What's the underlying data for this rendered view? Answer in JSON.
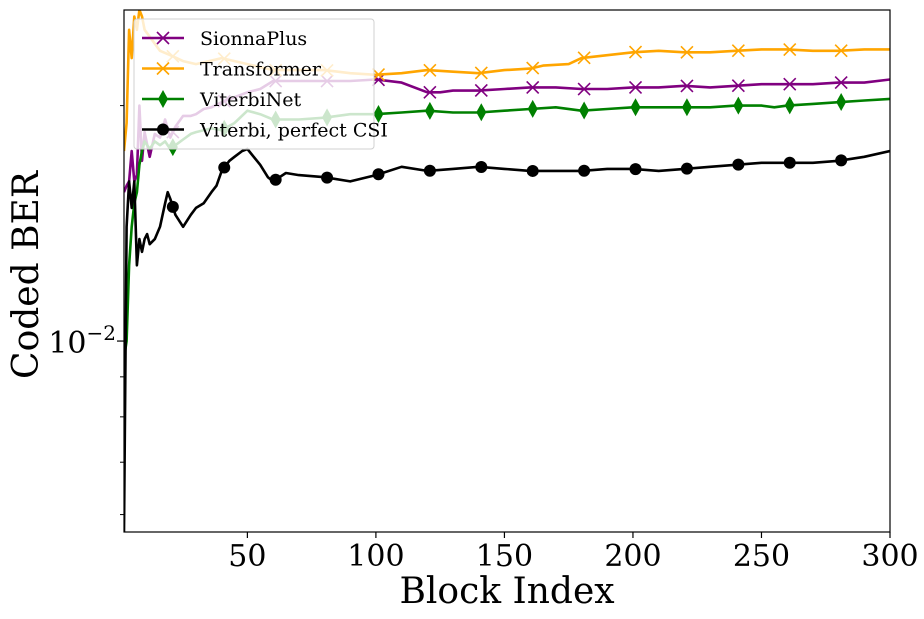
{
  "chart_data": {
    "type": "line",
    "xlabel": "Block Index",
    "ylabel": "Coded BER",
    "xlim": [
      2,
      300
    ],
    "ylim": [
      0.0057,
      0.0265
    ],
    "yscale": "log",
    "xticks": [
      50,
      100,
      150,
      200,
      250,
      300
    ],
    "yticks_major": [
      {
        "value": 0.01,
        "label": "10",
        "exp": "−2"
      }
    ],
    "yticks_minor": [
      0.006,
      0.007,
      0.008,
      0.009,
      0.02
    ],
    "grid": false,
    "legend_position": "top-left",
    "series": [
      {
        "name": "SionnaPlus",
        "color": "#800080",
        "marker": "x",
        "x": [
          2,
          3,
          4,
          5,
          6,
          7,
          8,
          9,
          10,
          12,
          14,
          16,
          18,
          20,
          22,
          25,
          28,
          30,
          33,
          36,
          40,
          45,
          50,
          55,
          60,
          70,
          80,
          90,
          100,
          110,
          120,
          125,
          130,
          140,
          150,
          160,
          170,
          180,
          190,
          200,
          210,
          220,
          230,
          240,
          250,
          260,
          270,
          280,
          290,
          300
        ],
        "y": [
          0.0155,
          0.0158,
          0.016,
          0.0175,
          0.016,
          0.0163,
          0.02,
          0.017,
          0.0185,
          0.0172,
          0.0184,
          0.0182,
          0.0192,
          0.0182,
          0.0188,
          0.0194,
          0.0194,
          0.0195,
          0.0198,
          0.0199,
          0.0202,
          0.0205,
          0.0208,
          0.021,
          0.0215,
          0.0215,
          0.0215,
          0.0215,
          0.0216,
          0.0214,
          0.0208,
          0.0208,
          0.0209,
          0.0209,
          0.021,
          0.0211,
          0.0211,
          0.021,
          0.021,
          0.0211,
          0.0211,
          0.0212,
          0.0211,
          0.0212,
          0.0213,
          0.0213,
          0.0213,
          0.0214,
          0.0214,
          0.0216
        ],
        "marker_x": [
          21,
          41,
          61,
          81,
          101,
          121,
          141,
          161,
          181,
          201,
          221,
          241,
          261,
          281
        ]
      },
      {
        "name": "Transformer",
        "color": "#FFA500",
        "marker": "x",
        "x": [
          2,
          3,
          4,
          5,
          6,
          7,
          8,
          9,
          10,
          12,
          14,
          16,
          20,
          25,
          30,
          40,
          50,
          60,
          70,
          80,
          90,
          100,
          110,
          120,
          130,
          140,
          150,
          160,
          165,
          175,
          180,
          190,
          200,
          210,
          220,
          230,
          240,
          250,
          260,
          270,
          280,
          290,
          300
        ],
        "y": [
          0.0175,
          0.019,
          0.025,
          0.023,
          0.026,
          0.025,
          0.0265,
          0.026,
          0.025,
          0.0245,
          0.024,
          0.0235,
          0.0232,
          0.0228,
          0.0226,
          0.023,
          0.0226,
          0.0222,
          0.0222,
          0.0222,
          0.022,
          0.0219,
          0.022,
          0.0222,
          0.0221,
          0.022,
          0.0222,
          0.0223,
          0.0225,
          0.0226,
          0.023,
          0.0232,
          0.0234,
          0.0235,
          0.0234,
          0.0234,
          0.0235,
          0.0236,
          0.0236,
          0.0235,
          0.0235,
          0.0236,
          0.0236
        ],
        "marker_x": [
          21,
          41,
          61,
          81,
          101,
          121,
          141,
          161,
          181,
          201,
          221,
          241,
          261,
          281
        ]
      },
      {
        "name": "ViterbiNet",
        "color": "#008000",
        "marker": "diamond",
        "x": [
          2,
          3,
          4,
          5,
          6,
          7,
          8,
          9,
          10,
          12,
          14,
          16,
          18,
          20,
          22,
          25,
          28,
          30,
          33,
          36,
          40,
          45,
          50,
          55,
          60,
          70,
          80,
          90,
          100,
          110,
          120,
          130,
          140,
          150,
          160,
          170,
          180,
          190,
          200,
          210,
          220,
          230,
          240,
          250,
          255,
          260,
          270,
          280,
          290,
          300
        ],
        "y": [
          0.0095,
          0.01,
          0.0125,
          0.014,
          0.015,
          0.0155,
          0.0168,
          0.0175,
          0.018,
          0.0176,
          0.018,
          0.0178,
          0.018,
          0.0176,
          0.0178,
          0.0181,
          0.0184,
          0.0185,
          0.0186,
          0.0187,
          0.0186,
          0.019,
          0.0197,
          0.0195,
          0.0192,
          0.0192,
          0.0193,
          0.0195,
          0.0195,
          0.0196,
          0.0197,
          0.0196,
          0.0196,
          0.0197,
          0.0198,
          0.0199,
          0.0197,
          0.0198,
          0.0199,
          0.0199,
          0.0199,
          0.0199,
          0.02,
          0.02,
          0.0199,
          0.02,
          0.0201,
          0.0202,
          0.0203,
          0.0204
        ],
        "marker_x": [
          21,
          41,
          61,
          81,
          101,
          121,
          141,
          161,
          181,
          201,
          221,
          241,
          261,
          281
        ]
      },
      {
        "name": "Viterbi, perfect CSI",
        "color": "#000000",
        "marker": "circle",
        "x": [
          2,
          3,
          4,
          5,
          6,
          7,
          8,
          9,
          10,
          11,
          12,
          14,
          16,
          18,
          19,
          20,
          22,
          25,
          28,
          30,
          33,
          36,
          38,
          40,
          43,
          45,
          48,
          50,
          55,
          58,
          60,
          65,
          70,
          80,
          90,
          100,
          110,
          120,
          130,
          140,
          150,
          160,
          170,
          180,
          190,
          200,
          210,
          220,
          230,
          240,
          250,
          260,
          270,
          280,
          290,
          300
        ],
        "y": [
          0.0057,
          0.014,
          0.016,
          0.0148,
          0.016,
          0.0125,
          0.0135,
          0.013,
          0.0135,
          0.0137,
          0.0133,
          0.0135,
          0.014,
          0.015,
          0.0155,
          0.0152,
          0.0145,
          0.014,
          0.0145,
          0.0148,
          0.015,
          0.0155,
          0.0158,
          0.0165,
          0.017,
          0.0172,
          0.0175,
          0.0176,
          0.0168,
          0.0162,
          0.016,
          0.0164,
          0.0163,
          0.0162,
          0.016,
          0.0163,
          0.0167,
          0.0165,
          0.0166,
          0.0167,
          0.0166,
          0.0165,
          0.0165,
          0.0165,
          0.0166,
          0.0166,
          0.0165,
          0.0166,
          0.0167,
          0.0168,
          0.0169,
          0.0169,
          0.0169,
          0.017,
          0.0172,
          0.0175
        ],
        "marker_x": [
          21,
          41,
          61,
          81,
          101,
          121,
          141,
          161,
          181,
          201,
          221,
          241,
          261,
          281
        ]
      }
    ]
  }
}
